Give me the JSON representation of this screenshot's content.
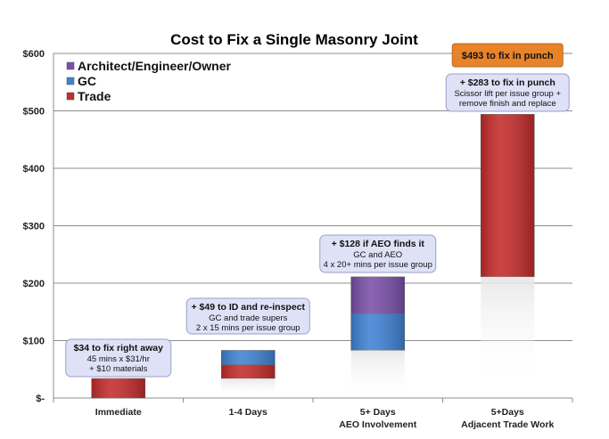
{
  "chart_data": {
    "type": "bar",
    "stacked": true,
    "title": "Cost to Fix a Single Masonry Joint",
    "xlabel": "",
    "ylabel": "",
    "ylim": [
      0,
      600
    ],
    "yticks": [
      {
        "value": 0,
        "label": "$-"
      },
      {
        "value": 100,
        "label": "$100"
      },
      {
        "value": 200,
        "label": "$200"
      },
      {
        "value": 300,
        "label": "$300"
      },
      {
        "value": 400,
        "label": "$400"
      },
      {
        "value": 500,
        "label": "$500"
      },
      {
        "value": 600,
        "label": "$600"
      }
    ],
    "grid": true,
    "legend_position": "top-left",
    "categories": [
      {
        "line1": "Immediate",
        "line2": ""
      },
      {
        "line1": "1-4 Days",
        "line2": ""
      },
      {
        "line1": "5+ Days",
        "line2": "AEO Involvement"
      },
      {
        "line1": "5+Days",
        "line2": "Adjacent Trade Work"
      }
    ],
    "waterfall_base": [
      0,
      34,
      83,
      211
    ],
    "series": [
      {
        "name": "Trade",
        "color": "#c42b2b",
        "values": [
          34,
          24,
          0,
          283
        ]
      },
      {
        "name": "GC",
        "color": "#3f82d4",
        "values": [
          0,
          25,
          64,
          0
        ]
      },
      {
        "name": "Architect/Engineer/Owner",
        "color": "#7a4fa8",
        "values": [
          0,
          0,
          64,
          0
        ]
      }
    ],
    "legend_order": [
      "Architect/Engineer/Owner",
      "GC",
      "Trade"
    ],
    "annotations": [
      {
        "head": "$34 to fix right away",
        "lines": [
          "45 mins x $31/hr",
          "+ $10 materials"
        ]
      },
      {
        "head": "+ $49 to ID and re-inspect",
        "lines": [
          "GC and trade supers",
          "2 x 15 mins per issue group"
        ]
      },
      {
        "head": "+ $128 if AEO finds it",
        "lines": [
          "GC and AEO",
          "4 x 20+ mins per issue group"
        ]
      },
      {
        "head": "+ $283 to fix in punch",
        "lines": [
          "Scissor lift per issue group +",
          "remove finish and replace"
        ]
      }
    ],
    "total_callout": "$493 to fix in punch",
    "total_color": "#e8832a"
  }
}
